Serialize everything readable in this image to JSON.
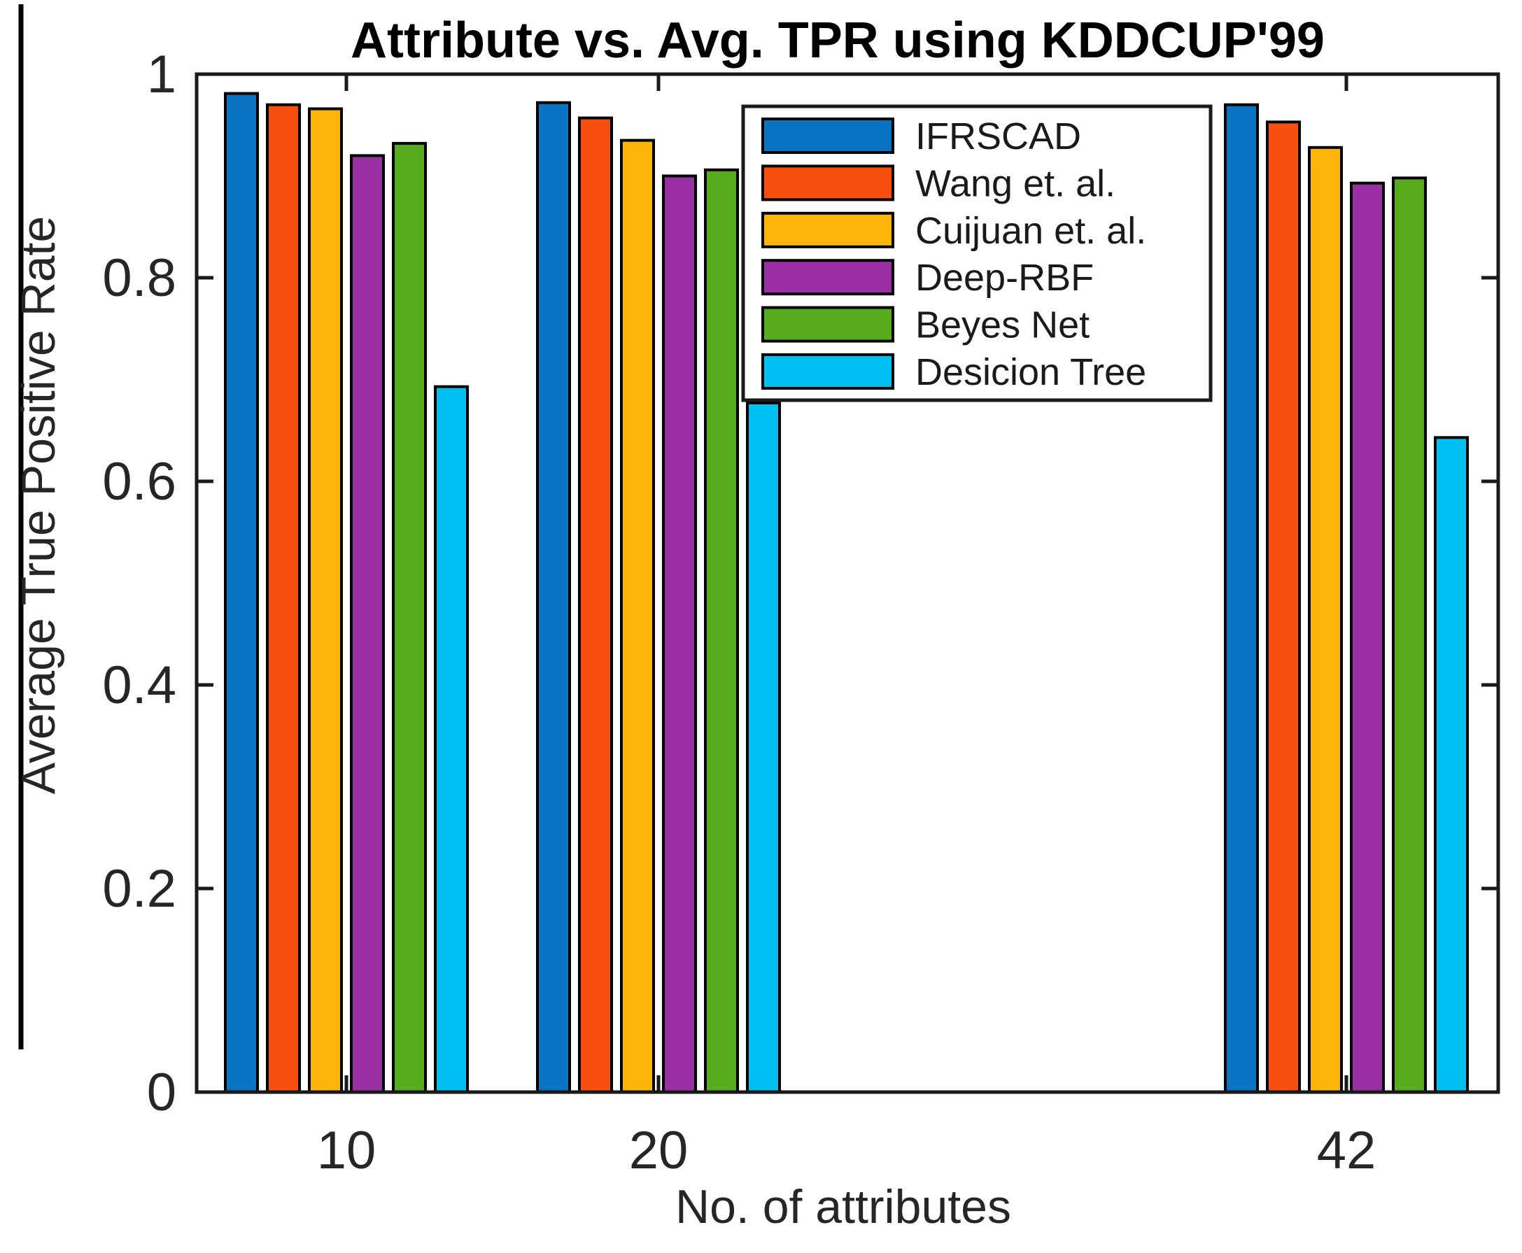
{
  "figure": {
    "title": "Attribute vs. Avg. TPR using KDDCUP'99",
    "x_axis_label": "No. of attributes",
    "y_axis_label": "Average True Positive Rate"
  },
  "chart_data": {
    "type": "bar",
    "title": "Attribute vs. Avg. TPR using KDDCUP'99",
    "xlabel": "No. of attributes",
    "ylabel": "Average True Positive Rate",
    "categories": [
      "10",
      "20",
      "42"
    ],
    "series": [
      {
        "name": "IFRSCAD",
        "color": "#0a73c2",
        "values": [
          0.981,
          0.972,
          0.97
        ]
      },
      {
        "name": "Wang et. al.",
        "color": "#f94f0e",
        "values": [
          0.97,
          0.957,
          0.953
        ]
      },
      {
        "name": "Cuijuan et. al.",
        "color": "#feb408",
        "values": [
          0.966,
          0.935,
          0.928
        ]
      },
      {
        "name": "Deep-RBF",
        "color": "#9a2fa3",
        "values": [
          0.92,
          0.9,
          0.893
        ]
      },
      {
        "name": "Beyes Net",
        "color": "#56ac1d",
        "values": [
          0.932,
          0.906,
          0.898
        ]
      },
      {
        "name": "Desicion Tree",
        "color": "#00c0f1",
        "values": [
          0.693,
          0.677,
          0.643
        ]
      }
    ],
    "ylim": [
      0,
      1
    ],
    "y_ticks": [
      0,
      0.2,
      0.4,
      0.6,
      0.8,
      1
    ],
    "y_tick_labels": [
      "0",
      "0.2",
      "0.4",
      "0.6",
      "0.8",
      "1"
    ],
    "grid": false,
    "legend_position": "upper-right-inside",
    "bar_edge_color": "#000000",
    "axis_color": "#1a1a1a"
  }
}
